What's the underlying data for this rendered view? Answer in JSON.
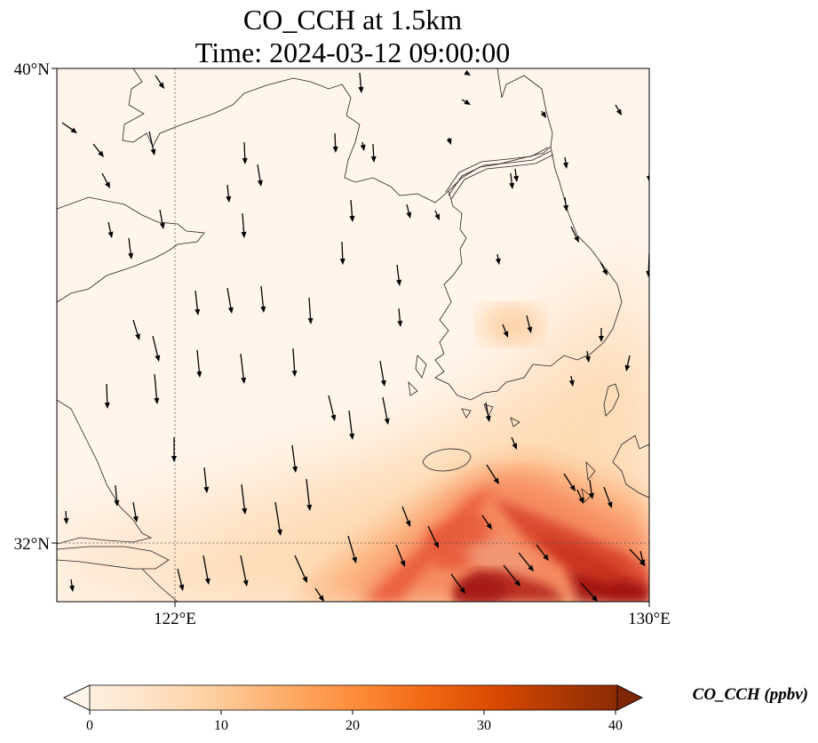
{
  "title_line1": "CO_CCH at 1.5km",
  "title_line2": "Time: 2024-03-12 09:00:00",
  "lat_ticks": [
    "40°N",
    "32°N"
  ],
  "lon_ticks": [
    "122°E",
    "130°E"
  ],
  "colorbar": {
    "label": "CO_CCH (ppbv)",
    "ticks": [
      "0",
      "10",
      "20",
      "30",
      "40"
    ],
    "min": 0,
    "max": 40,
    "colormap": [
      "#fff5eb",
      "#fee6ce",
      "#fdd0a2",
      "#fdae6b",
      "#fd8d3c",
      "#f16913",
      "#d94801",
      "#a63603",
      "#7f2704"
    ]
  },
  "chart_data": {
    "type": "heatmap",
    "variable": "CO_CCH",
    "units": "ppbv",
    "lon_range": [
      120,
      130
    ],
    "lat_range": [
      31,
      40
    ],
    "value_range": [
      0,
      40
    ],
    "gridlines": {
      "lon": [
        122
      ],
      "lat": [
        32
      ],
      "style": "dotted"
    },
    "hotspots": [
      {
        "lon": 127.3,
        "lat": 31.4,
        "value": 38
      },
      {
        "lon": 129.4,
        "lat": 31.4,
        "value": 36
      },
      {
        "lon": 126.3,
        "lat": 32.2,
        "value": 28
      },
      {
        "lon": 128.1,
        "lat": 32.0,
        "value": 30
      },
      {
        "lon": 127.3,
        "lat": 35.8,
        "value": 12
      }
    ],
    "wind_vectors": "southward/south-southeasterly flow across the domain"
  }
}
